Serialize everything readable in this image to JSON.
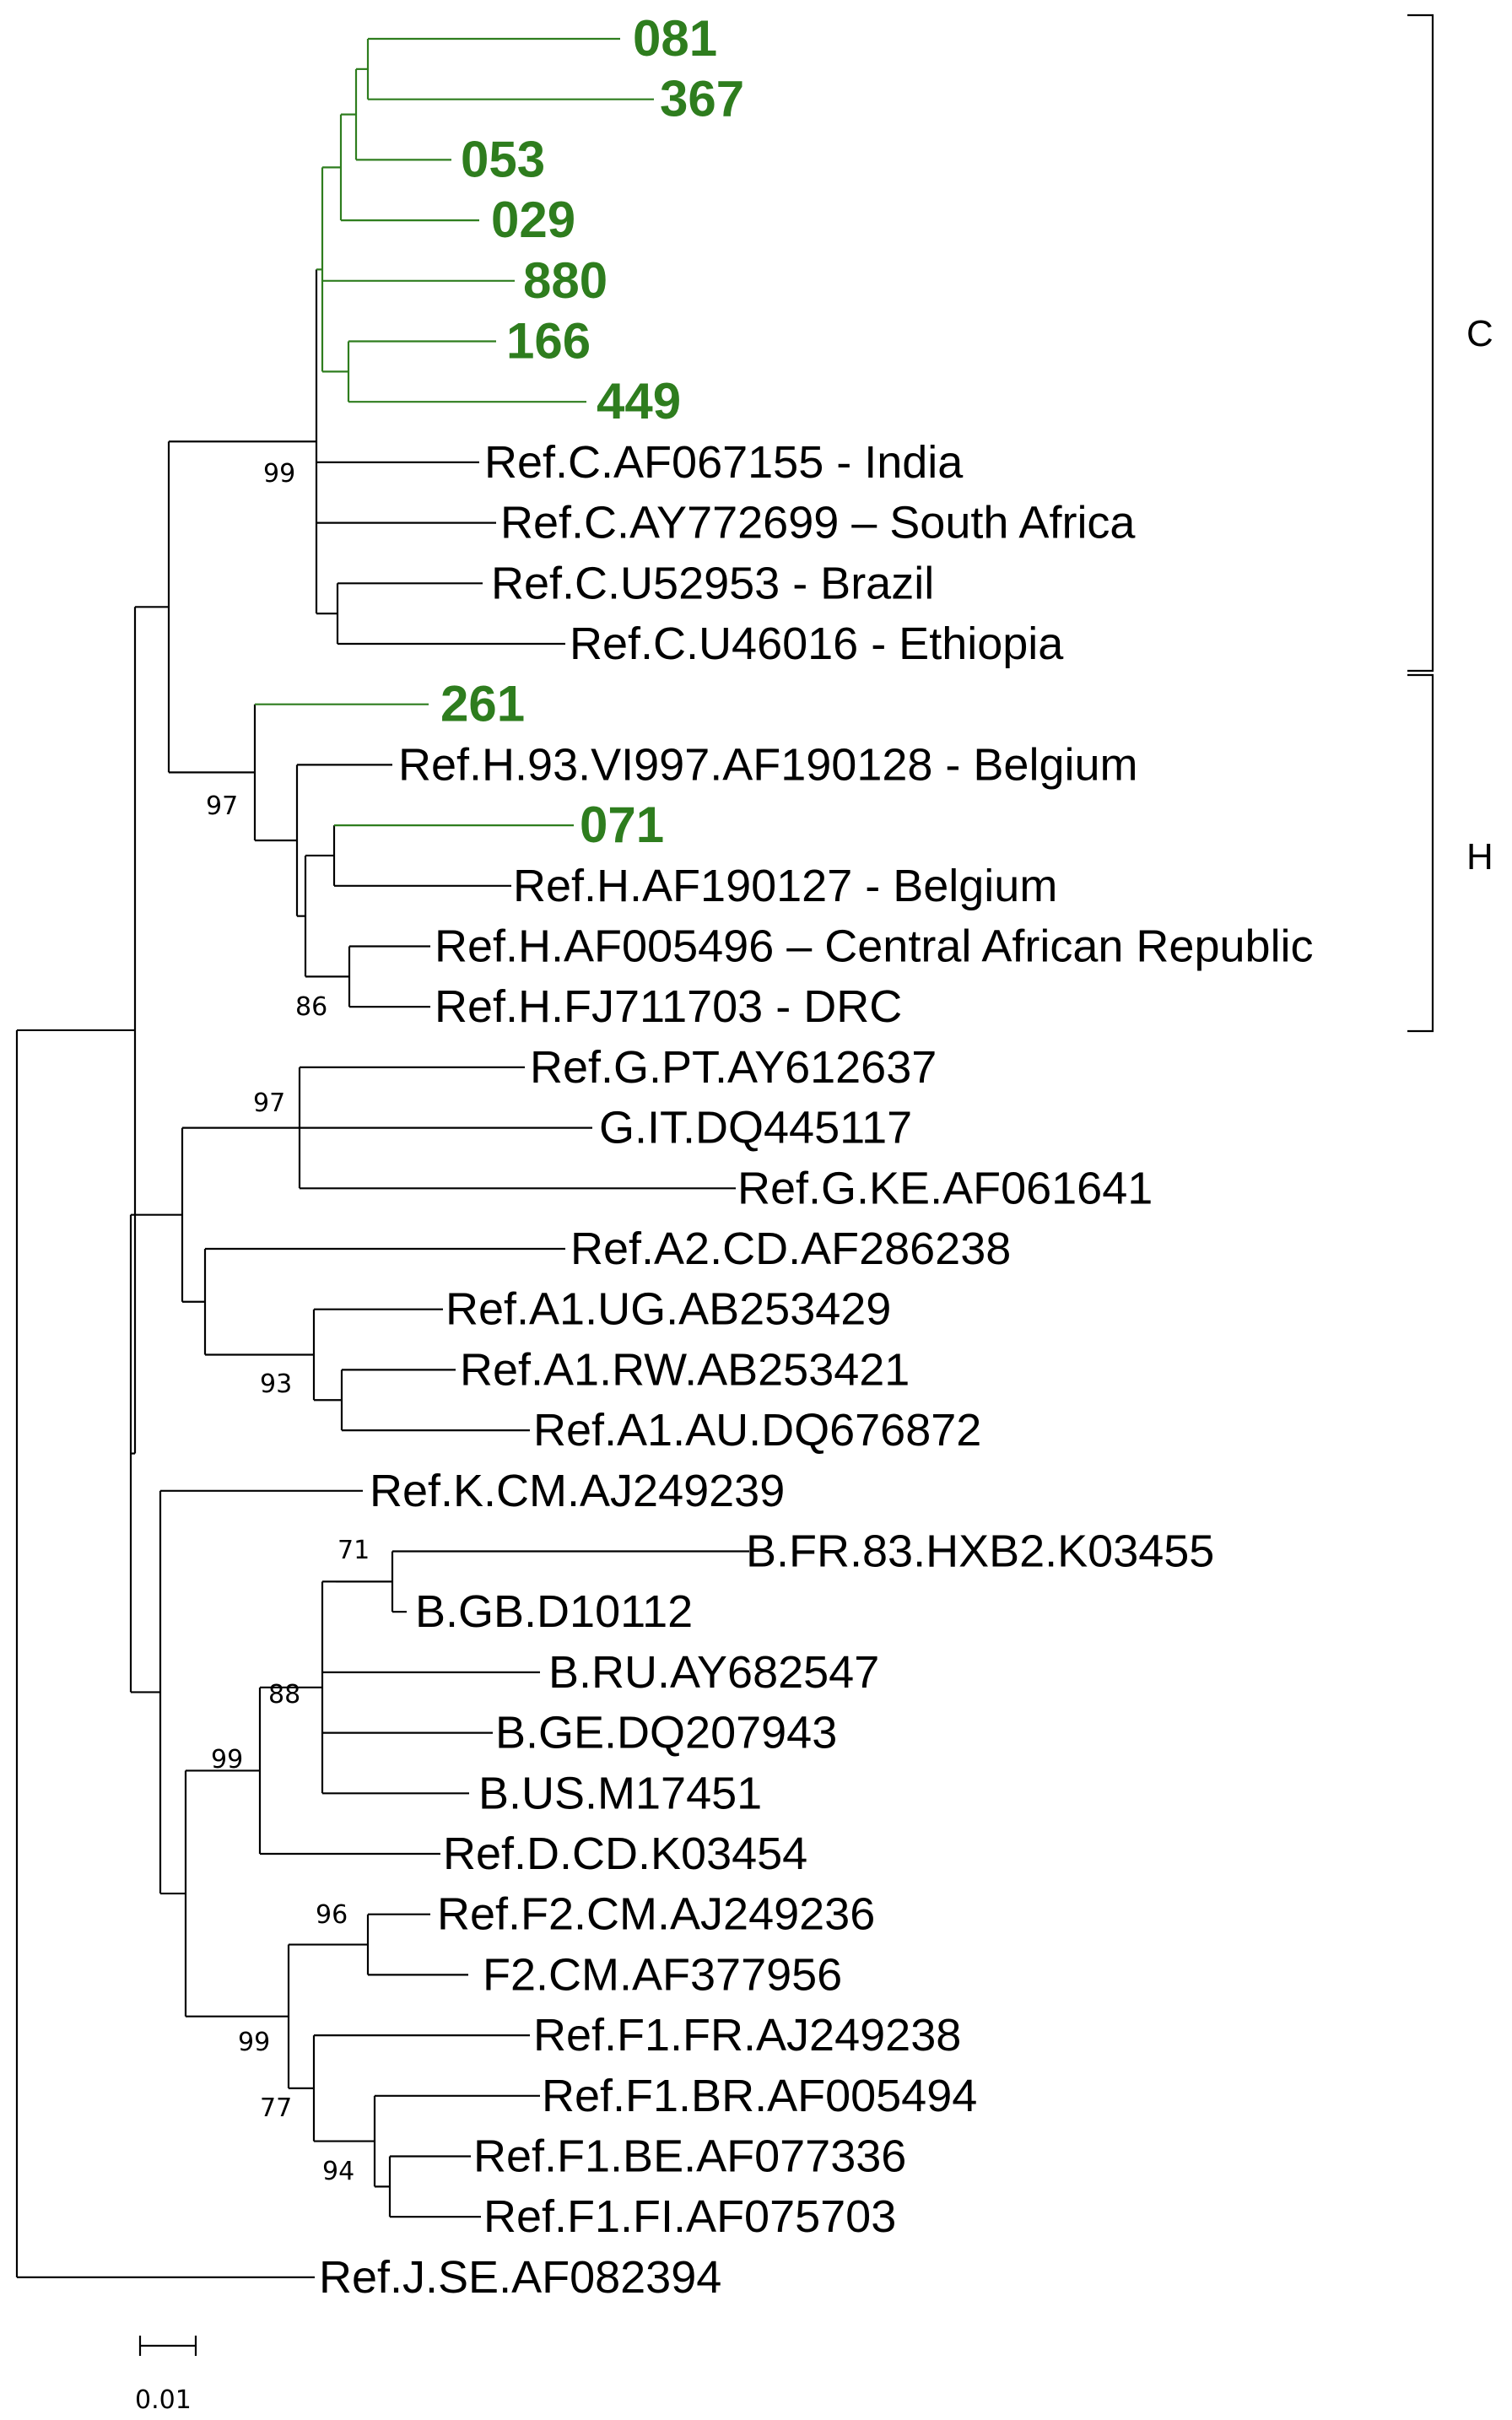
{
  "tree": {
    "taxa": [
      {
        "id": "t081",
        "label": "081",
        "color": "#2e7d1e",
        "highlight": true
      },
      {
        "id": "t367",
        "label": "367",
        "color": "#2e7d1e",
        "highlight": true
      },
      {
        "id": "t053",
        "label": "053",
        "color": "#2e7d1e",
        "highlight": true
      },
      {
        "id": "t029",
        "label": "029",
        "color": "#2e7d1e",
        "highlight": true
      },
      {
        "id": "t880",
        "label": "880",
        "color": "#2e7d1e",
        "highlight": true
      },
      {
        "id": "t166",
        "label": "166",
        "color": "#2e7d1e",
        "highlight": true
      },
      {
        "id": "t449",
        "label": "449",
        "color": "#2e7d1e",
        "highlight": true
      },
      {
        "id": "cIndia",
        "label": "Ref.C.AF067155 - India"
      },
      {
        "id": "cSA",
        "label": "Ref.C.AY772699 – South Africa"
      },
      {
        "id": "cBrazil",
        "label": "Ref.C.U52953 - Brazil"
      },
      {
        "id": "cEth",
        "label": "Ref.C.U46016 - Ethiopia"
      },
      {
        "id": "t261",
        "label": "261",
        "color": "#2e7d1e",
        "highlight": true
      },
      {
        "id": "hBel1",
        "label": "Ref.H.93.VI997.AF190128 - Belgium"
      },
      {
        "id": "t071",
        "label": "071",
        "color": "#2e7d1e",
        "highlight": true
      },
      {
        "id": "hBel2",
        "label": "Ref.H.AF190127 - Belgium"
      },
      {
        "id": "hCAR",
        "label": "Ref.H.AF005496 – Central African Republic"
      },
      {
        "id": "hDRC",
        "label": "Ref.H.FJ711703 - DRC"
      },
      {
        "id": "gPT",
        "label": "Ref.G.PT.AY612637"
      },
      {
        "id": "gIT",
        "label": "G.IT.DQ445117"
      },
      {
        "id": "gKE",
        "label": "Ref.G.KE.AF061641"
      },
      {
        "id": "a2CD",
        "label": "Ref.A2.CD.AF286238"
      },
      {
        "id": "a1UG",
        "label": "Ref.A1.UG.AB253429"
      },
      {
        "id": "a1RW",
        "label": "Ref.A1.RW.AB253421"
      },
      {
        "id": "a1AU",
        "label": "Ref.A1.AU.DQ676872"
      },
      {
        "id": "kCM",
        "label": "Ref.K.CM.AJ249239"
      },
      {
        "id": "bFR",
        "label": "B.FR.83.HXB2.K03455"
      },
      {
        "id": "bGB",
        "label": "B.GB.D10112"
      },
      {
        "id": "bRU",
        "label": "B.RU.AY682547"
      },
      {
        "id": "bGE",
        "label": "B.GE.DQ207943"
      },
      {
        "id": "bUS",
        "label": "B.US.M17451"
      },
      {
        "id": "dCD",
        "label": "Ref.D.CD.K03454"
      },
      {
        "id": "f2CM1",
        "label": "Ref.F2.CM.AJ249236"
      },
      {
        "id": "f2CM2",
        "label": "F2.CM.AF377956"
      },
      {
        "id": "f1FR",
        "label": "Ref.F1.FR.AJ249238"
      },
      {
        "id": "f1BR",
        "label": "Ref.F1.BR.AF005494"
      },
      {
        "id": "f1BE",
        "label": "Ref.F1.BE.AF077336"
      },
      {
        "id": "f1FI",
        "label": "Ref.F1.FI.AF075703"
      },
      {
        "id": "jSE",
        "label": "Ref.J.SE.AF082394"
      }
    ],
    "bootstrap": [
      {
        "node": "nC",
        "value": "99"
      },
      {
        "node": "nH",
        "value": "97"
      },
      {
        "node": "nH2",
        "value": "86"
      },
      {
        "node": "nG",
        "value": "97"
      },
      {
        "node": "nA1",
        "value": "93"
      },
      {
        "node": "nB1",
        "value": "71"
      },
      {
        "node": "nB",
        "value": "88"
      },
      {
        "node": "nBD",
        "value": "99"
      },
      {
        "node": "nF2",
        "value": "96"
      },
      {
        "node": "nF",
        "value": "99"
      },
      {
        "node": "nF1",
        "value": "77"
      },
      {
        "node": "nF1b",
        "value": "94"
      }
    ],
    "clades": [
      {
        "id": "cladeC",
        "label": "C"
      },
      {
        "id": "cladeH",
        "label": "H"
      }
    ],
    "scale_bar": {
      "label": "0.01",
      "value": 0.01
    }
  }
}
